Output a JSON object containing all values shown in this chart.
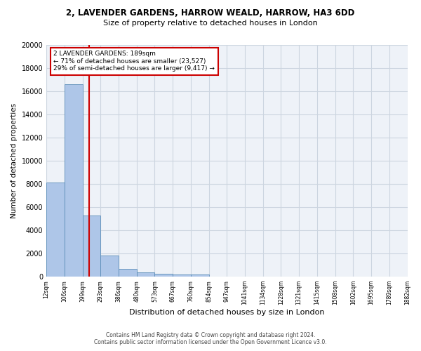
{
  "title_line1": "2, LAVENDER GARDENS, HARROW WEALD, HARROW, HA3 6DD",
  "title_line2": "Size of property relative to detached houses in London",
  "xlabel": "Distribution of detached houses by size in London",
  "ylabel": "Number of detached properties",
  "footer_line1": "Contains HM Land Registry data © Crown copyright and database right 2024.",
  "footer_line2": "Contains public sector information licensed under the Open Government Licence v3.0.",
  "annotation_line1": "2 LAVENDER GARDENS: 189sqm",
  "annotation_line2": "← 71% of detached houses are smaller (23,527)",
  "annotation_line3": "29% of semi-detached houses are larger (9,417) →",
  "bar_color": "#aec6e8",
  "bar_edge_color": "#5b8db8",
  "vline_color": "#cc0000",
  "annotation_box_color": "#cc0000",
  "grid_color": "#ccd5e0",
  "background_color": "#eef2f8",
  "tick_labels": [
    "12sqm",
    "106sqm",
    "199sqm",
    "293sqm",
    "386sqm",
    "480sqm",
    "573sqm",
    "667sqm",
    "760sqm",
    "854sqm",
    "947sqm",
    "1041sqm",
    "1134sqm",
    "1228sqm",
    "1321sqm",
    "1415sqm",
    "1508sqm",
    "1602sqm",
    "1695sqm",
    "1789sqm",
    "1882sqm"
  ],
  "bar_values": [
    8100,
    16600,
    5300,
    1820,
    650,
    340,
    270,
    200,
    175,
    0,
    0,
    0,
    0,
    0,
    0,
    0,
    0,
    0,
    0,
    0
  ],
  "ylim": [
    0,
    20000
  ],
  "yticks": [
    0,
    2000,
    4000,
    6000,
    8000,
    10000,
    12000,
    14000,
    16000,
    18000,
    20000
  ],
  "vline_x": 1.87,
  "num_bars": 20
}
